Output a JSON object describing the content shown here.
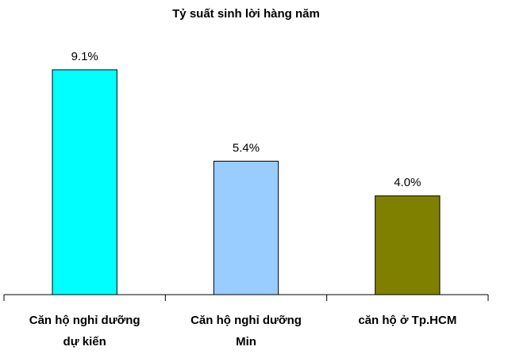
{
  "chart_data": {
    "type": "bar",
    "title": "Tỷ suất sinh lời hàng năm",
    "categories": [
      [
        "Căn hộ nghỉ dưỡng",
        "dự kiến"
      ],
      [
        "Căn hộ nghỉ dưỡng",
        "Min"
      ],
      [
        "căn hộ ở Tp.HCM"
      ]
    ],
    "values": [
      9.1,
      5.4,
      4.0
    ],
    "value_labels": [
      "9.1%",
      "5.4%",
      "4.0%"
    ],
    "colors": [
      "#00ffff",
      "#99ccff",
      "#808000"
    ],
    "ylim": [
      0,
      10
    ]
  }
}
